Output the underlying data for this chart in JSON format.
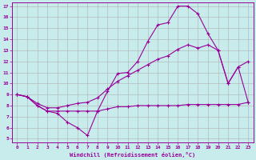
{
  "xlabel": "Windchill (Refroidissement éolien,°C)",
  "background_color": "#c8ecec",
  "grid_color": "#b0b0b0",
  "line_color": "#990099",
  "xlim": [
    -0.5,
    23.5
  ],
  "ylim": [
    4.7,
    17.3
  ],
  "xticks": [
    0,
    1,
    2,
    3,
    4,
    5,
    6,
    7,
    8,
    9,
    10,
    11,
    12,
    13,
    14,
    15,
    16,
    17,
    18,
    19,
    20,
    21,
    22,
    23
  ],
  "yticks": [
    5,
    6,
    7,
    8,
    9,
    10,
    11,
    12,
    13,
    14,
    15,
    16,
    17
  ],
  "series1_x": [
    0,
    1,
    2,
    3,
    4,
    5,
    6,
    7,
    8,
    9,
    10,
    11,
    12,
    13,
    14,
    15,
    16,
    17,
    18,
    19,
    20,
    21,
    22,
    23
  ],
  "series1_y": [
    9.0,
    8.8,
    8.0,
    7.5,
    7.3,
    6.5,
    6.0,
    5.3,
    7.5,
    9.3,
    10.9,
    11.0,
    12.0,
    13.8,
    15.3,
    15.5,
    17.0,
    17.0,
    16.3,
    14.5,
    13.0,
    10.0,
    11.5,
    12.0
  ],
  "series2_x": [
    0,
    1,
    2,
    3,
    4,
    5,
    6,
    7,
    8,
    9,
    10,
    11,
    12,
    13,
    14,
    15,
    16,
    17,
    18,
    19,
    20,
    21,
    22,
    23
  ],
  "series2_y": [
    9.0,
    8.8,
    8.0,
    7.5,
    7.5,
    7.5,
    7.5,
    7.5,
    7.5,
    7.7,
    7.9,
    7.9,
    8.0,
    8.0,
    8.0,
    8.0,
    8.0,
    8.1,
    8.1,
    8.1,
    8.1,
    8.1,
    8.1,
    8.3
  ],
  "series3_x": [
    0,
    1,
    2,
    3,
    4,
    5,
    6,
    7,
    8,
    9,
    10,
    11,
    12,
    13,
    14,
    15,
    16,
    17,
    18,
    19,
    20,
    21,
    22,
    23
  ],
  "series3_y": [
    9.0,
    8.8,
    8.2,
    7.8,
    7.8,
    8.0,
    8.2,
    8.3,
    8.7,
    9.5,
    10.2,
    10.7,
    11.2,
    11.7,
    12.2,
    12.5,
    13.1,
    13.5,
    13.2,
    13.5,
    13.0,
    10.0,
    11.5,
    8.3
  ]
}
